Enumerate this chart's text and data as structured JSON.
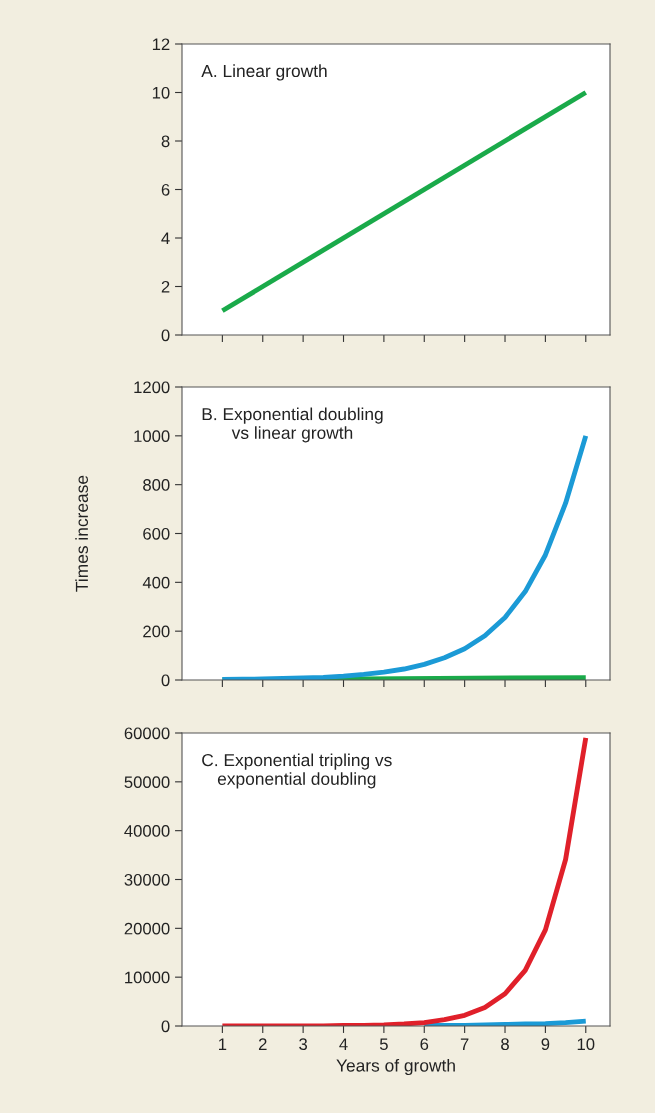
{
  "chart_data": [
    {
      "type": "line",
      "title": "A. Linear growth",
      "xlim": [
        0,
        10.6
      ],
      "xticks": [
        {
          "value": 1,
          "label": null
        },
        {
          "value": 2,
          "label": null
        },
        {
          "value": 3,
          "label": null
        },
        {
          "value": 4,
          "label": null
        },
        {
          "value": 5,
          "label": null
        },
        {
          "value": 6,
          "label": null
        },
        {
          "value": 7,
          "label": null
        },
        {
          "value": 8,
          "label": null
        },
        {
          "value": 9,
          "label": null
        },
        {
          "value": 10,
          "label": null
        }
      ],
      "ylim": [
        0,
        12
      ],
      "yticks": [
        0,
        2,
        4,
        6,
        8,
        10,
        12
      ],
      "tick_labels": "y",
      "series": [
        {
          "color": "#1aaa4a",
          "x": [
            1,
            10
          ],
          "values": [
            1,
            10
          ]
        }
      ]
    },
    {
      "type": "line",
      "title": "B. Exponential doubling\nvs linear growth",
      "ylabel": "Times increase",
      "xlim": [
        0,
        10.6
      ],
      "xticks": [
        {
          "value": 1,
          "label": null
        },
        {
          "value": 2,
          "label": null
        },
        {
          "value": 3,
          "label": null
        },
        {
          "value": 4,
          "label": null
        },
        {
          "value": 5,
          "label": null
        },
        {
          "value": 6,
          "label": null
        },
        {
          "value": 7,
          "label": null
        },
        {
          "value": 8,
          "label": null
        },
        {
          "value": 9,
          "label": null
        },
        {
          "value": 10,
          "label": null
        }
      ],
      "ylim": [
        0,
        1200
      ],
      "yticks": [
        0,
        200,
        400,
        600,
        800,
        1000,
        1200
      ],
      "tick_labels": "y",
      "series": [
        {
          "color": "#1aaa4a",
          "x": [
            1,
            10
          ],
          "values": [
            1,
            10
          ]
        },
        {
          "color": "#1b9ad6",
          "x": [
            1,
            1.5,
            2,
            2.5,
            3,
            3.5,
            4,
            4.5,
            5,
            5.5,
            6,
            6.5,
            7,
            7.5,
            8,
            8.5,
            9,
            9.5,
            10
          ],
          "values": [
            2,
            3,
            4,
            6,
            8,
            11,
            16,
            23,
            32,
            45,
            64,
            91,
            128,
            181,
            256,
            362,
            512,
            724,
            1000
          ]
        }
      ]
    },
    {
      "type": "line",
      "title": "C. Exponential tripling vs\nexponential doubling",
      "xlabel": "Years of growth",
      "xlim": [
        0,
        10.6
      ],
      "xticks": [
        1,
        2,
        3,
        4,
        5,
        6,
        7,
        8,
        9,
        10
      ],
      "ylim": [
        0,
        60000
      ],
      "yticks": [
        0,
        10000,
        20000,
        30000,
        40000,
        50000,
        60000
      ],
      "series": [
        {
          "color": "#1b9ad6",
          "x": [
            6,
            6.5,
            7,
            7.5,
            8,
            8.5,
            9,
            9.5,
            10
          ],
          "values": [
            100,
            100,
            100,
            200,
            300,
            400,
            500,
            700,
            1000
          ]
        },
        {
          "color": "#e0202a",
          "x": [
            1,
            1.5,
            2,
            2.5,
            3,
            3.5,
            4,
            4.5,
            5,
            5.5,
            6,
            6.5,
            7,
            7.5,
            8,
            8.5,
            9,
            9.5,
            10
          ],
          "values": [
            0,
            0,
            0,
            0,
            0,
            0,
            100,
            100,
            200,
            400,
            700,
            1300,
            2200,
            3800,
            6600,
            11400,
            19700,
            34100,
            59000
          ]
        }
      ]
    }
  ]
}
